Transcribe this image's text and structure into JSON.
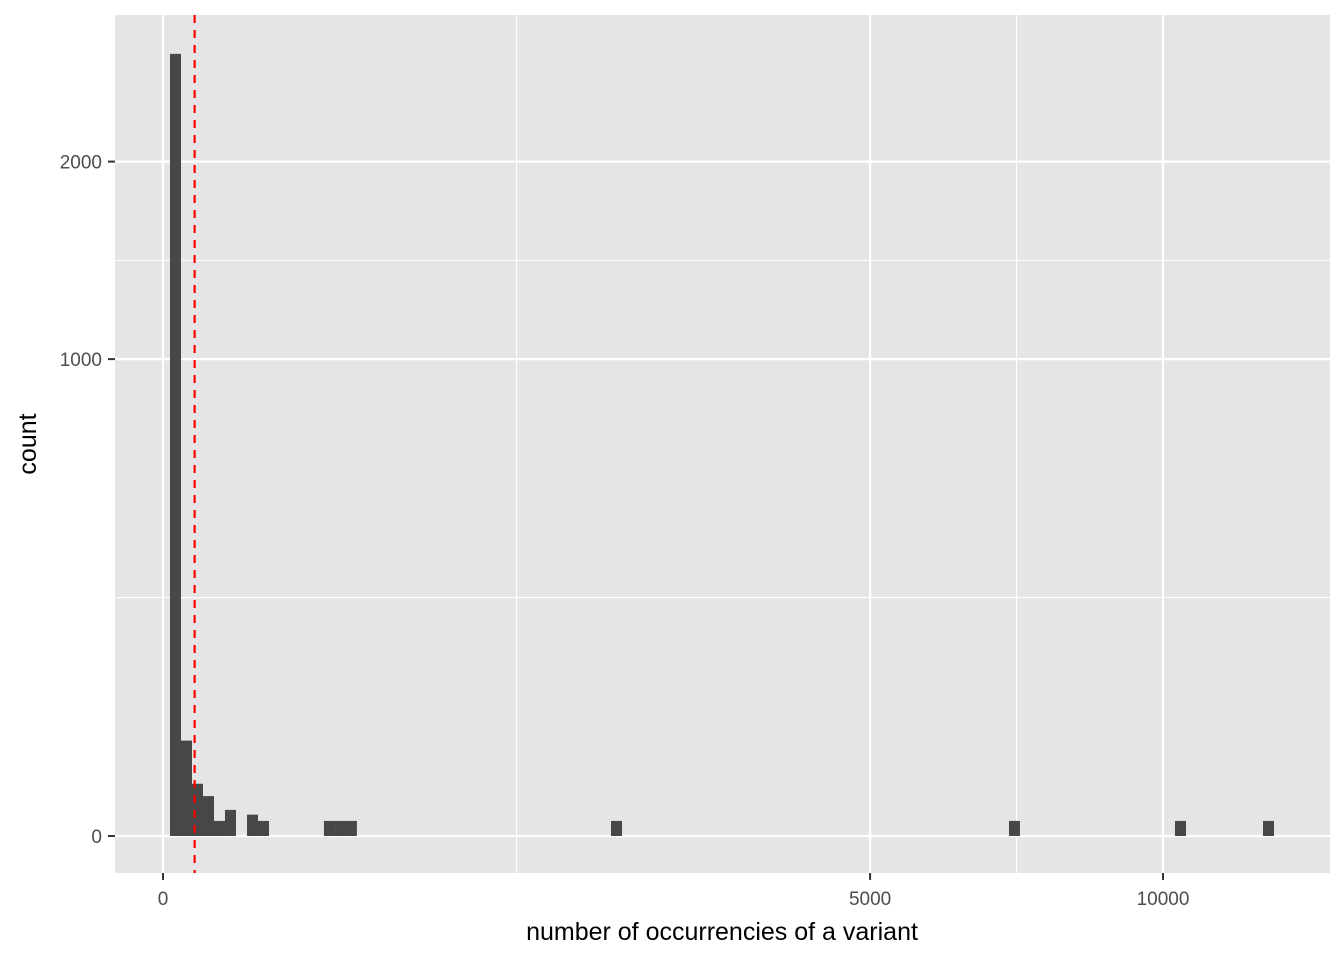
{
  "chart_data": {
    "type": "bar",
    "subtype": "histogram",
    "xlabel": "number of occurrencies of a variant",
    "ylabel": "count",
    "x_scale": "sqrt",
    "y_scale": "sqrt",
    "x_ticks": [
      {
        "value": 0,
        "label": "0"
      },
      {
        "value": 5000,
        "label": "5000"
      },
      {
        "value": 10000,
        "label": "10000"
      }
    ],
    "y_ticks": [
      {
        "value": 0,
        "label": "0"
      },
      {
        "value": 1000,
        "label": "1000"
      },
      {
        "value": 2000,
        "label": "2000"
      }
    ],
    "grid": true,
    "bins": [
      {
        "xmin": 0.49,
        "xmax": 3.24,
        "count": 2690
      },
      {
        "xmin": 3.24,
        "xmax": 8.41,
        "count": 40
      },
      {
        "xmin": 8.41,
        "xmax": 16,
        "count": 12
      },
      {
        "xmin": 16,
        "xmax": 26,
        "count": 7
      },
      {
        "xmin": 26,
        "xmax": 38.4,
        "count": 1
      },
      {
        "xmin": 38.4,
        "xmax": 53.3,
        "count": 3
      },
      {
        "xmin": 70.6,
        "xmax": 90.3,
        "count": 2
      },
      {
        "xmin": 90.3,
        "xmax": 112.4,
        "count": 1
      },
      {
        "xmin": 259,
        "xmax": 296,
        "count": 1
      },
      {
        "xmin": 296,
        "xmax": 335,
        "count": 1
      },
      {
        "xmin": 335,
        "xmax": 376,
        "count": 1
      },
      {
        "xmin": 2007,
        "xmax": 2107,
        "count": 1
      },
      {
        "xmin": 7157,
        "xmax": 7344,
        "count": 1
      },
      {
        "xmin": 10241,
        "xmax": 10465,
        "count": 1
      },
      {
        "xmin": 12100,
        "xmax": 12343,
        "count": 1
      }
    ],
    "reference_line": {
      "x": 10,
      "color": "#ff0000",
      "style": "dashed"
    },
    "colors": {
      "bar": "#474747",
      "panel": "#e5e5e5",
      "grid": "#ffffff"
    }
  }
}
